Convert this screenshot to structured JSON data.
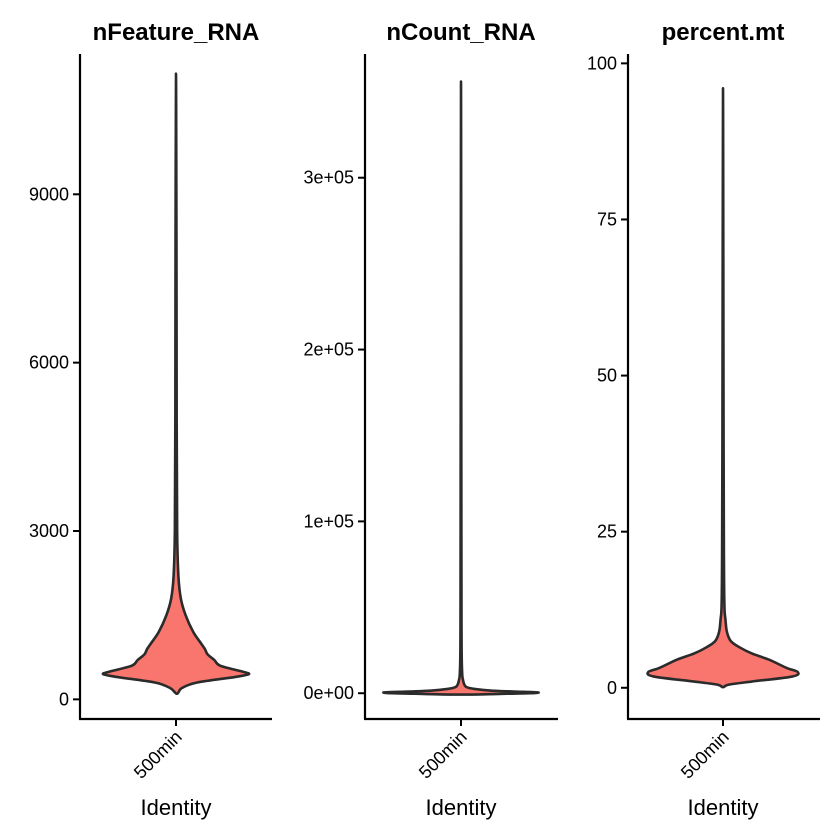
{
  "chart_data": [
    {
      "type": "violin",
      "title": "nFeature_RNA",
      "xlabel": "Identity",
      "ylabel": "",
      "categories": [
        "500min"
      ],
      "ylim": [
        -350,
        11500
      ],
      "yticks": [
        0,
        3000,
        6000,
        9000
      ],
      "ytick_labels": [
        "0",
        "3000",
        "6000",
        "9000"
      ],
      "fill": "#F8766D",
      "density": [
        {
          "y": 100,
          "w": 0.01
        },
        {
          "y": 200,
          "w": 0.06
        },
        {
          "y": 300,
          "w": 0.22
        },
        {
          "y": 400,
          "w": 0.62
        },
        {
          "y": 450,
          "w": 0.76
        },
        {
          "y": 500,
          "w": 0.68
        },
        {
          "y": 600,
          "w": 0.46
        },
        {
          "y": 700,
          "w": 0.4
        },
        {
          "y": 800,
          "w": 0.33
        },
        {
          "y": 900,
          "w": 0.3
        },
        {
          "y": 1000,
          "w": 0.26
        },
        {
          "y": 1200,
          "w": 0.18
        },
        {
          "y": 1500,
          "w": 0.1
        },
        {
          "y": 1800,
          "w": 0.05
        },
        {
          "y": 2200,
          "w": 0.025
        },
        {
          "y": 3000,
          "w": 0.012
        },
        {
          "y": 5000,
          "w": 0.007
        },
        {
          "y": 8000,
          "w": 0.005
        },
        {
          "y": 11150,
          "w": 0.0
        }
      ]
    },
    {
      "type": "violin",
      "title": "nCount_RNA",
      "xlabel": "Identity",
      "ylabel": "",
      "categories": [
        "500min"
      ],
      "ylim": [
        -15000,
        372000
      ],
      "yticks": [
        0,
        100000,
        200000,
        300000
      ],
      "ytick_labels": [
        "0e+00",
        "1e+05",
        "2e+05",
        "3e+05"
      ],
      "fill": "#F8766D",
      "density": [
        {
          "y": -800,
          "w": 0.0
        },
        {
          "y": -400,
          "w": 0.4
        },
        {
          "y": 0,
          "w": 0.72
        },
        {
          "y": 500,
          "w": 0.8
        },
        {
          "y": 1000,
          "w": 0.55
        },
        {
          "y": 1500,
          "w": 0.32
        },
        {
          "y": 2500,
          "w": 0.14
        },
        {
          "y": 3500,
          "w": 0.06
        },
        {
          "y": 5000,
          "w": 0.035
        },
        {
          "y": 8000,
          "w": 0.02
        },
        {
          "y": 12000,
          "w": 0.012
        },
        {
          "y": 30000,
          "w": 0.006
        },
        {
          "y": 100000,
          "w": 0.004
        },
        {
          "y": 356000,
          "w": 0.0
        }
      ]
    },
    {
      "type": "violin",
      "title": "percent.mt",
      "xlabel": "Identity",
      "ylabel": "",
      "categories": [
        "500min"
      ],
      "ylim": [
        -5,
        101.5
      ],
      "yticks": [
        0,
        25,
        50,
        75,
        100
      ],
      "ytick_labels": [
        "0",
        "25",
        "50",
        "75",
        "100"
      ],
      "fill": "#F8766D",
      "density": [
        {
          "y": 0.1,
          "w": 0.0
        },
        {
          "y": 0.5,
          "w": 0.06
        },
        {
          "y": 1.0,
          "w": 0.3
        },
        {
          "y": 1.8,
          "w": 0.72
        },
        {
          "y": 2.5,
          "w": 0.78
        },
        {
          "y": 3.2,
          "w": 0.66
        },
        {
          "y": 4.5,
          "w": 0.48
        },
        {
          "y": 5.5,
          "w": 0.3
        },
        {
          "y": 6.5,
          "w": 0.17
        },
        {
          "y": 7.5,
          "w": 0.08
        },
        {
          "y": 9.0,
          "w": 0.04
        },
        {
          "y": 11.0,
          "w": 0.025
        },
        {
          "y": 13.0,
          "w": 0.015
        },
        {
          "y": 20.0,
          "w": 0.01
        },
        {
          "y": 40.0,
          "w": 0.006
        },
        {
          "y": 96.0,
          "w": 0.0
        }
      ]
    }
  ]
}
